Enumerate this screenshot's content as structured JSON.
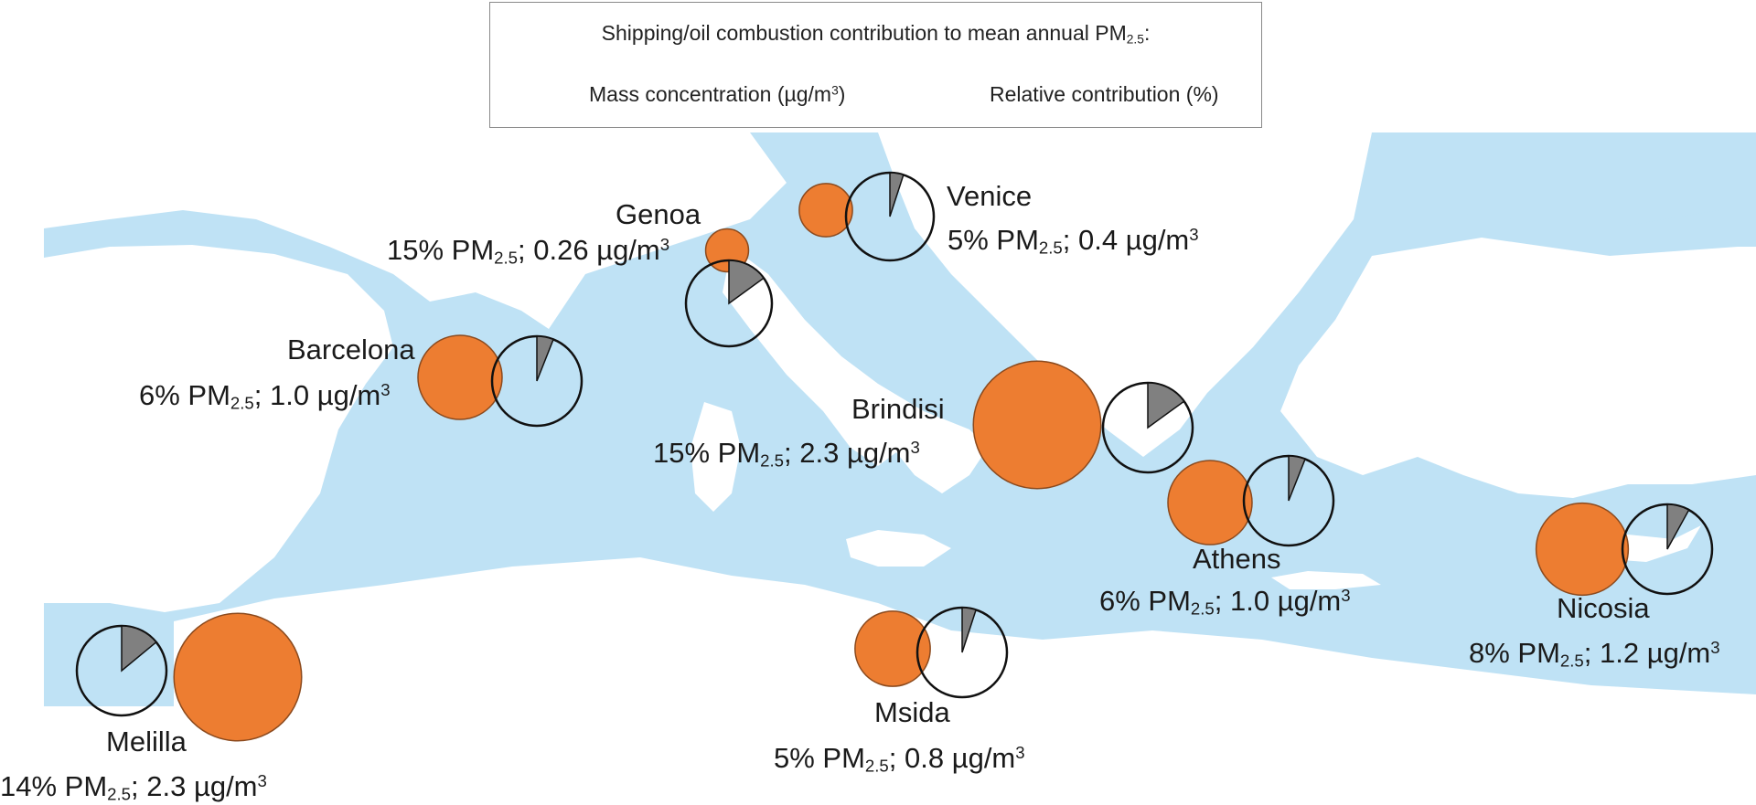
{
  "legend": {
    "title_prefix": "Shipping/oil combustion contribution to mean annual PM",
    "title_sub": "2.5",
    "title_suffix": ":",
    "mass_prefix": "Mass concentration (µg/m",
    "mass_sup": "3",
    "mass_suffix": ")",
    "relative": "Relative contribution (%)"
  },
  "colors": {
    "sea": "#bfe2f5",
    "land": "#ffffff",
    "mass_fill": "#ed7d31",
    "pie_fill": "#808080"
  },
  "cities": [
    {
      "name": "Genoa",
      "percent": 15,
      "mass": 0.26,
      "pct_text": "15% PM",
      "sub": "2.5",
      "mid": "; 0.26 µg/m",
      "sup": "3"
    },
    {
      "name": "Venice",
      "percent": 5,
      "mass": 0.4,
      "pct_text": "5% PM",
      "sub": "2.5",
      "mid": "; 0.4 µg/m",
      "sup": "3"
    },
    {
      "name": "Barcelona",
      "percent": 6,
      "mass": 1.0,
      "pct_text": "6% PM",
      "sub": "2.5",
      "mid": "; 1.0 µg/m",
      "sup": "3"
    },
    {
      "name": "Brindisi",
      "percent": 15,
      "mass": 2.3,
      "pct_text": "15% PM",
      "sub": "2.5",
      "mid": "; 2.3 µg/m",
      "sup": "3"
    },
    {
      "name": "Athens",
      "percent": 6,
      "mass": 1.0,
      "pct_text": "6% PM",
      "sub": "2.5",
      "mid": "; 1.0 µg/m",
      "sup": "3"
    },
    {
      "name": "Nicosia",
      "percent": 8,
      "mass": 1.2,
      "pct_text": "8% PM",
      "sub": "2.5",
      "mid": "; 1.2 µg/m",
      "sup": "3"
    },
    {
      "name": "Msida",
      "percent": 5,
      "mass": 0.8,
      "pct_text": "5% PM",
      "sub": "2.5",
      "mid": "; 0.8 µg/m",
      "sup": "3"
    },
    {
      "name": "Melilla",
      "percent": 14,
      "mass": 2.3,
      "pct_text": "14% PM",
      "sub": "2.5",
      "mid": "; 2.3 µg/m",
      "sup": "3"
    }
  ]
}
